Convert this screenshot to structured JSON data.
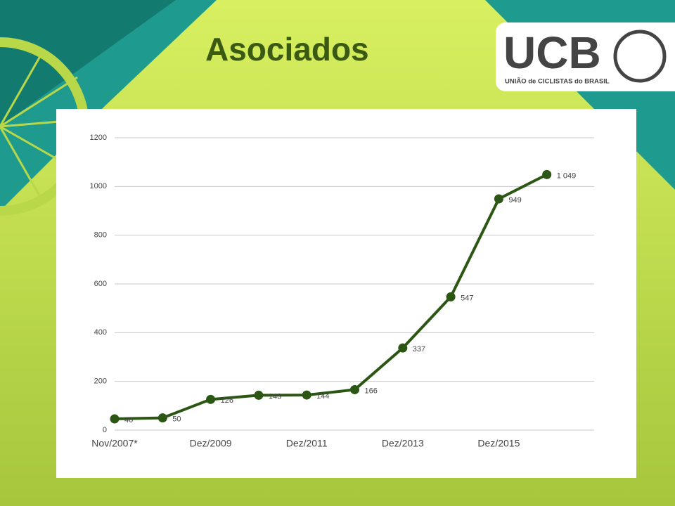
{
  "title": "Asociados",
  "logo": {
    "name": "UCB",
    "subtitle": "UNIÃO de CICLISTAS do BRASIL"
  },
  "chart_data": {
    "type": "line",
    "categories": [
      "Nov/2007*",
      null,
      "Dez/2009",
      null,
      "Dez/2011",
      null,
      "Dez/2013",
      null,
      "Dez/2015",
      null
    ],
    "series": [
      {
        "name": "Asociados",
        "color": "#2b5614",
        "values": [
          46,
          50,
          126,
          143,
          144,
          166,
          337,
          547,
          949,
          1049
        ],
        "value_labels": [
          "46",
          "50",
          "126",
          "143",
          "144",
          "166",
          "337",
          "547",
          "949",
          "1 049"
        ]
      }
    ],
    "ylim": [
      0,
      1200
    ],
    "yticks": [
      0,
      200,
      400,
      600,
      800,
      1000,
      1200
    ],
    "grid": true
  }
}
